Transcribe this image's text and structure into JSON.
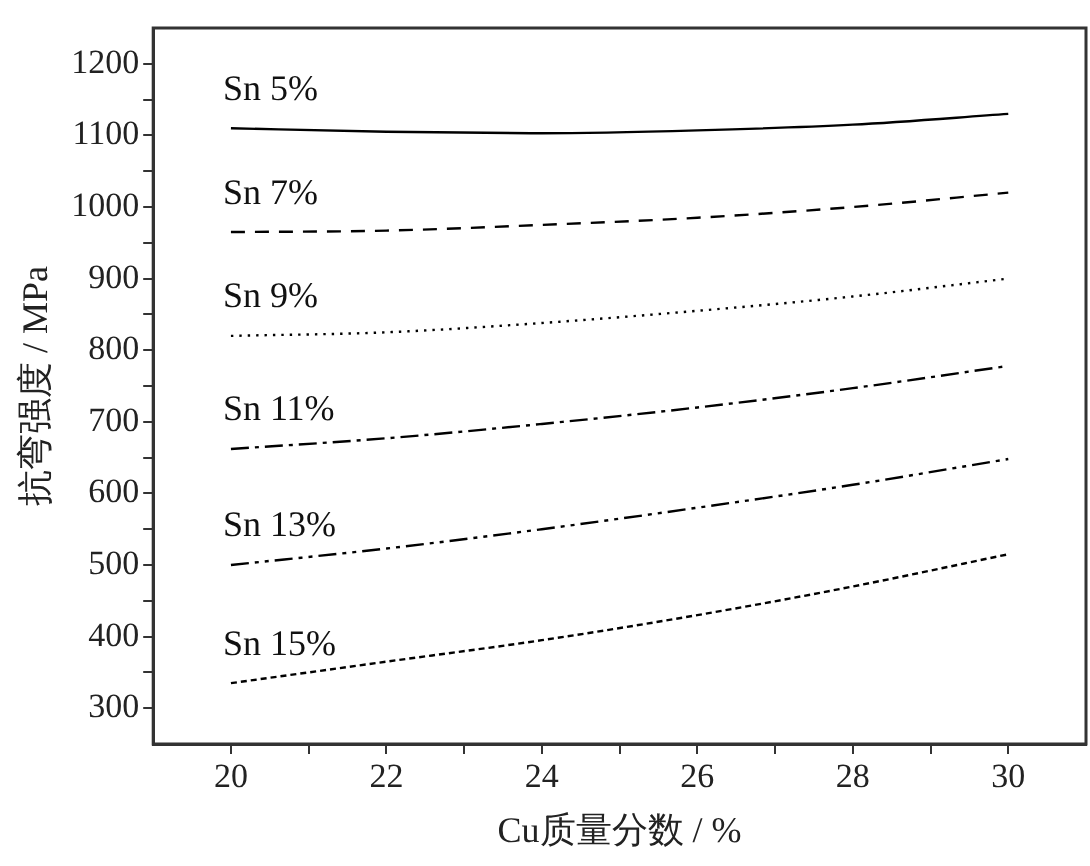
{
  "chart_data": {
    "type": "line",
    "xlabel": "Cu质量分数 / %",
    "ylabel": "抗弯强度 / MPa",
    "x": [
      20,
      22,
      24,
      26,
      28,
      30
    ],
    "xlim": [
      19,
      31
    ],
    "xticks": [
      20,
      {
        "value": 21,
        "label": null
      },
      22,
      {
        "value": 23,
        "label": null
      },
      24,
      {
        "value": 25,
        "label": null
      },
      26,
      {
        "value": 27,
        "label": null
      },
      28,
      {
        "value": 29,
        "label": null
      },
      30
    ],
    "ylim": [
      250,
      1250
    ],
    "yticks": [
      300,
      {
        "value": 350,
        "label": null
      },
      400,
      {
        "value": 450,
        "label": null
      },
      500,
      {
        "value": 550,
        "label": null
      },
      600,
      {
        "value": 650,
        "label": null
      },
      700,
      {
        "value": 750,
        "label": null
      },
      800,
      {
        "value": 850,
        "label": null
      },
      900,
      {
        "value": 950,
        "label": null
      },
      1000,
      {
        "value": 1050,
        "label": null
      },
      1100,
      {
        "value": 1150,
        "label": null
      },
      1200
    ],
    "grid": false,
    "legend": false,
    "marker": "none",
    "series": [
      {
        "name": "Sn 5%",
        "color": "#000000",
        "line_style": "solid",
        "values": [
          1110,
          1105,
          1103,
          1107,
          1115,
          1130
        ]
      },
      {
        "name": "Sn 7%",
        "color": "#000000",
        "line_style": "dashed",
        "values": [
          965,
          967,
          975,
          985,
          1000,
          1020
        ]
      },
      {
        "name": "Sn 9%",
        "color": "#000000",
        "line_style": "dotted",
        "values": [
          820,
          825,
          838,
          855,
          875,
          900
        ]
      },
      {
        "name": "Sn 11%",
        "color": "#000000",
        "line_style": "dashed",
        "values": [
          662,
          677,
          697,
          720,
          747,
          778
        ]
      },
      {
        "name": "Sn 13%",
        "color": "#000000",
        "line_style": "dashed",
        "values": [
          500,
          523,
          550,
          580,
          612,
          648
        ]
      },
      {
        "name": "Sn 15%",
        "color": "#000000",
        "line_style": "dashed",
        "values": [
          335,
          365,
          395,
          430,
          470,
          515
        ]
      }
    ]
  }
}
